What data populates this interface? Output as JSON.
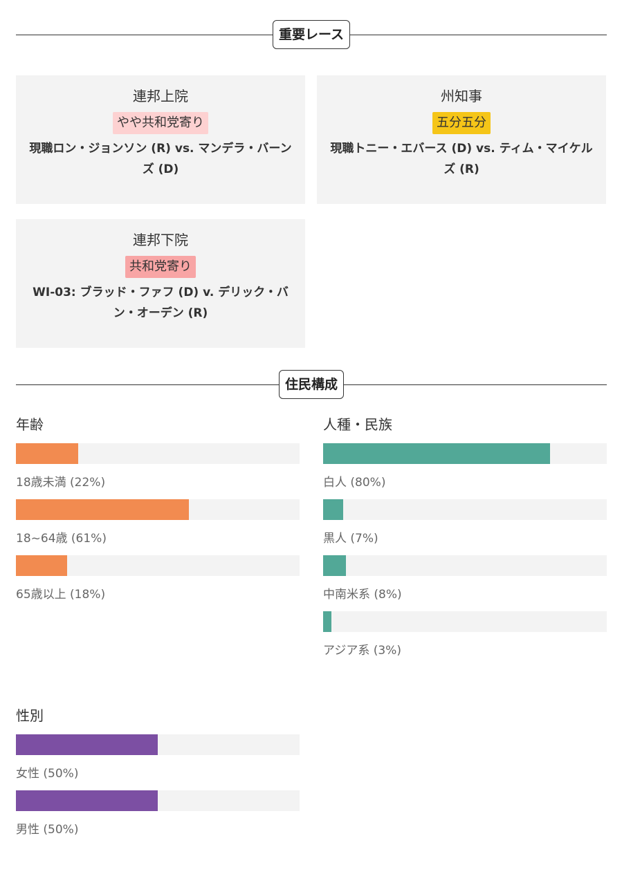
{
  "races_section": {
    "title": "重要レース",
    "races": [
      {
        "office": "連邦上院",
        "rating": "やや共和党寄り",
        "rating_color": "#fdd1d1",
        "matchup": "現職ロン・ジョンソン (R) vs. マンデラ・バーンズ (D)"
      },
      {
        "office": "州知事",
        "rating": "五分五分",
        "rating_color": "#f5c518",
        "matchup": "現職トニー・エバース (D) vs. ティム・マイケルズ (R)"
      },
      {
        "office": "連邦下院",
        "rating": "共和党寄り",
        "rating_color": "#f8a5a5",
        "matchup": "WI-03: ブラッド・ファフ (D) v. デリック・バン・オーデン (R)"
      }
    ]
  },
  "demographics_section": {
    "title": "住民構成",
    "groups": [
      {
        "title": "年齢",
        "color": "#f28b50",
        "items": [
          {
            "label": "18歳未満 (22%)",
            "value": 22
          },
          {
            "label": "18~64歳 (61%)",
            "value": 61
          },
          {
            "label": "65歳以上 (18%)",
            "value": 18
          }
        ]
      },
      {
        "title": "人種・民族",
        "color": "#52a897",
        "items": [
          {
            "label": "白人 (80%)",
            "value": 80
          },
          {
            "label": "黒人 (7%)",
            "value": 7
          },
          {
            "label": "中南米系 (8%)",
            "value": 8
          },
          {
            "label": "アジア系 (3%)",
            "value": 3
          }
        ]
      },
      {
        "title": "性別",
        "color": "#7c4fa3",
        "items": [
          {
            "label": "女性 (50%)",
            "value": 50
          },
          {
            "label": "男性 (50%)",
            "value": 50
          }
        ]
      }
    ]
  }
}
